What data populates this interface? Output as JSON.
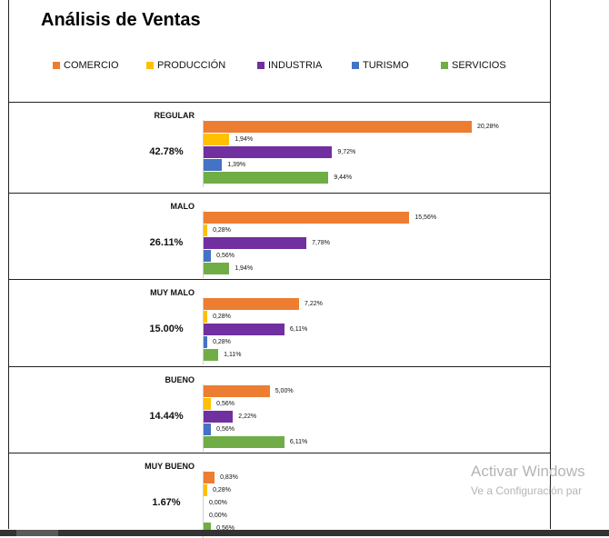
{
  "title": "Análisis de Ventas",
  "chart_data": {
    "type": "bar",
    "orientation": "horizontal",
    "title": "Análisis de Ventas",
    "series": [
      {
        "name": "COMERCIO",
        "color": "#ED7D31",
        "values": [
          20.28,
          15.56,
          7.22,
          5.0,
          0.83
        ]
      },
      {
        "name": "PRODUCCIÓN",
        "color": "#FFC000",
        "values": [
          1.94,
          0.28,
          0.28,
          0.56,
          0.28
        ]
      },
      {
        "name": "INDUSTRIA",
        "color": "#7030A0",
        "values": [
          9.72,
          7.78,
          6.11,
          2.22,
          0.0
        ]
      },
      {
        "name": "TURISMO",
        "color": "#4472C4",
        "values": [
          1.39,
          0.56,
          0.28,
          0.56,
          0.0
        ]
      },
      {
        "name": "SERVICIOS",
        "color": "#70AD47",
        "values": [
          9.44,
          1.94,
          1.11,
          6.11,
          0.56
        ]
      }
    ],
    "groups": [
      {
        "label": "REGULAR",
        "total": "42.78%",
        "value_labels": [
          "20,28%",
          "1,94%",
          "9,72%",
          "1,39%",
          "9,44%"
        ]
      },
      {
        "label": "MALO",
        "total": "26.11%",
        "value_labels": [
          "15,56%",
          "0,28%",
          "7,78%",
          "0,56%",
          "1,94%"
        ]
      },
      {
        "label": "MUY MALO",
        "total": "15.00%",
        "value_labels": [
          "7,22%",
          "0,28%",
          "6,11%",
          "0,28%",
          "1,11%"
        ]
      },
      {
        "label": "BUENO",
        "total": "14.44%",
        "value_labels": [
          "5,00%",
          "0,56%",
          "2,22%",
          "0,56%",
          "6,11%"
        ]
      },
      {
        "label": "MUY BUENO",
        "total": "1.67%",
        "value_labels": [
          "0,83%",
          "0,28%",
          "0,00%",
          "0,00%",
          "0,56%"
        ]
      }
    ],
    "xlim": [
      0,
      20.28
    ],
    "legend_position": "top"
  },
  "watermark": {
    "line1": "Activar Windows",
    "line2": "Ve a Configuración par"
  }
}
